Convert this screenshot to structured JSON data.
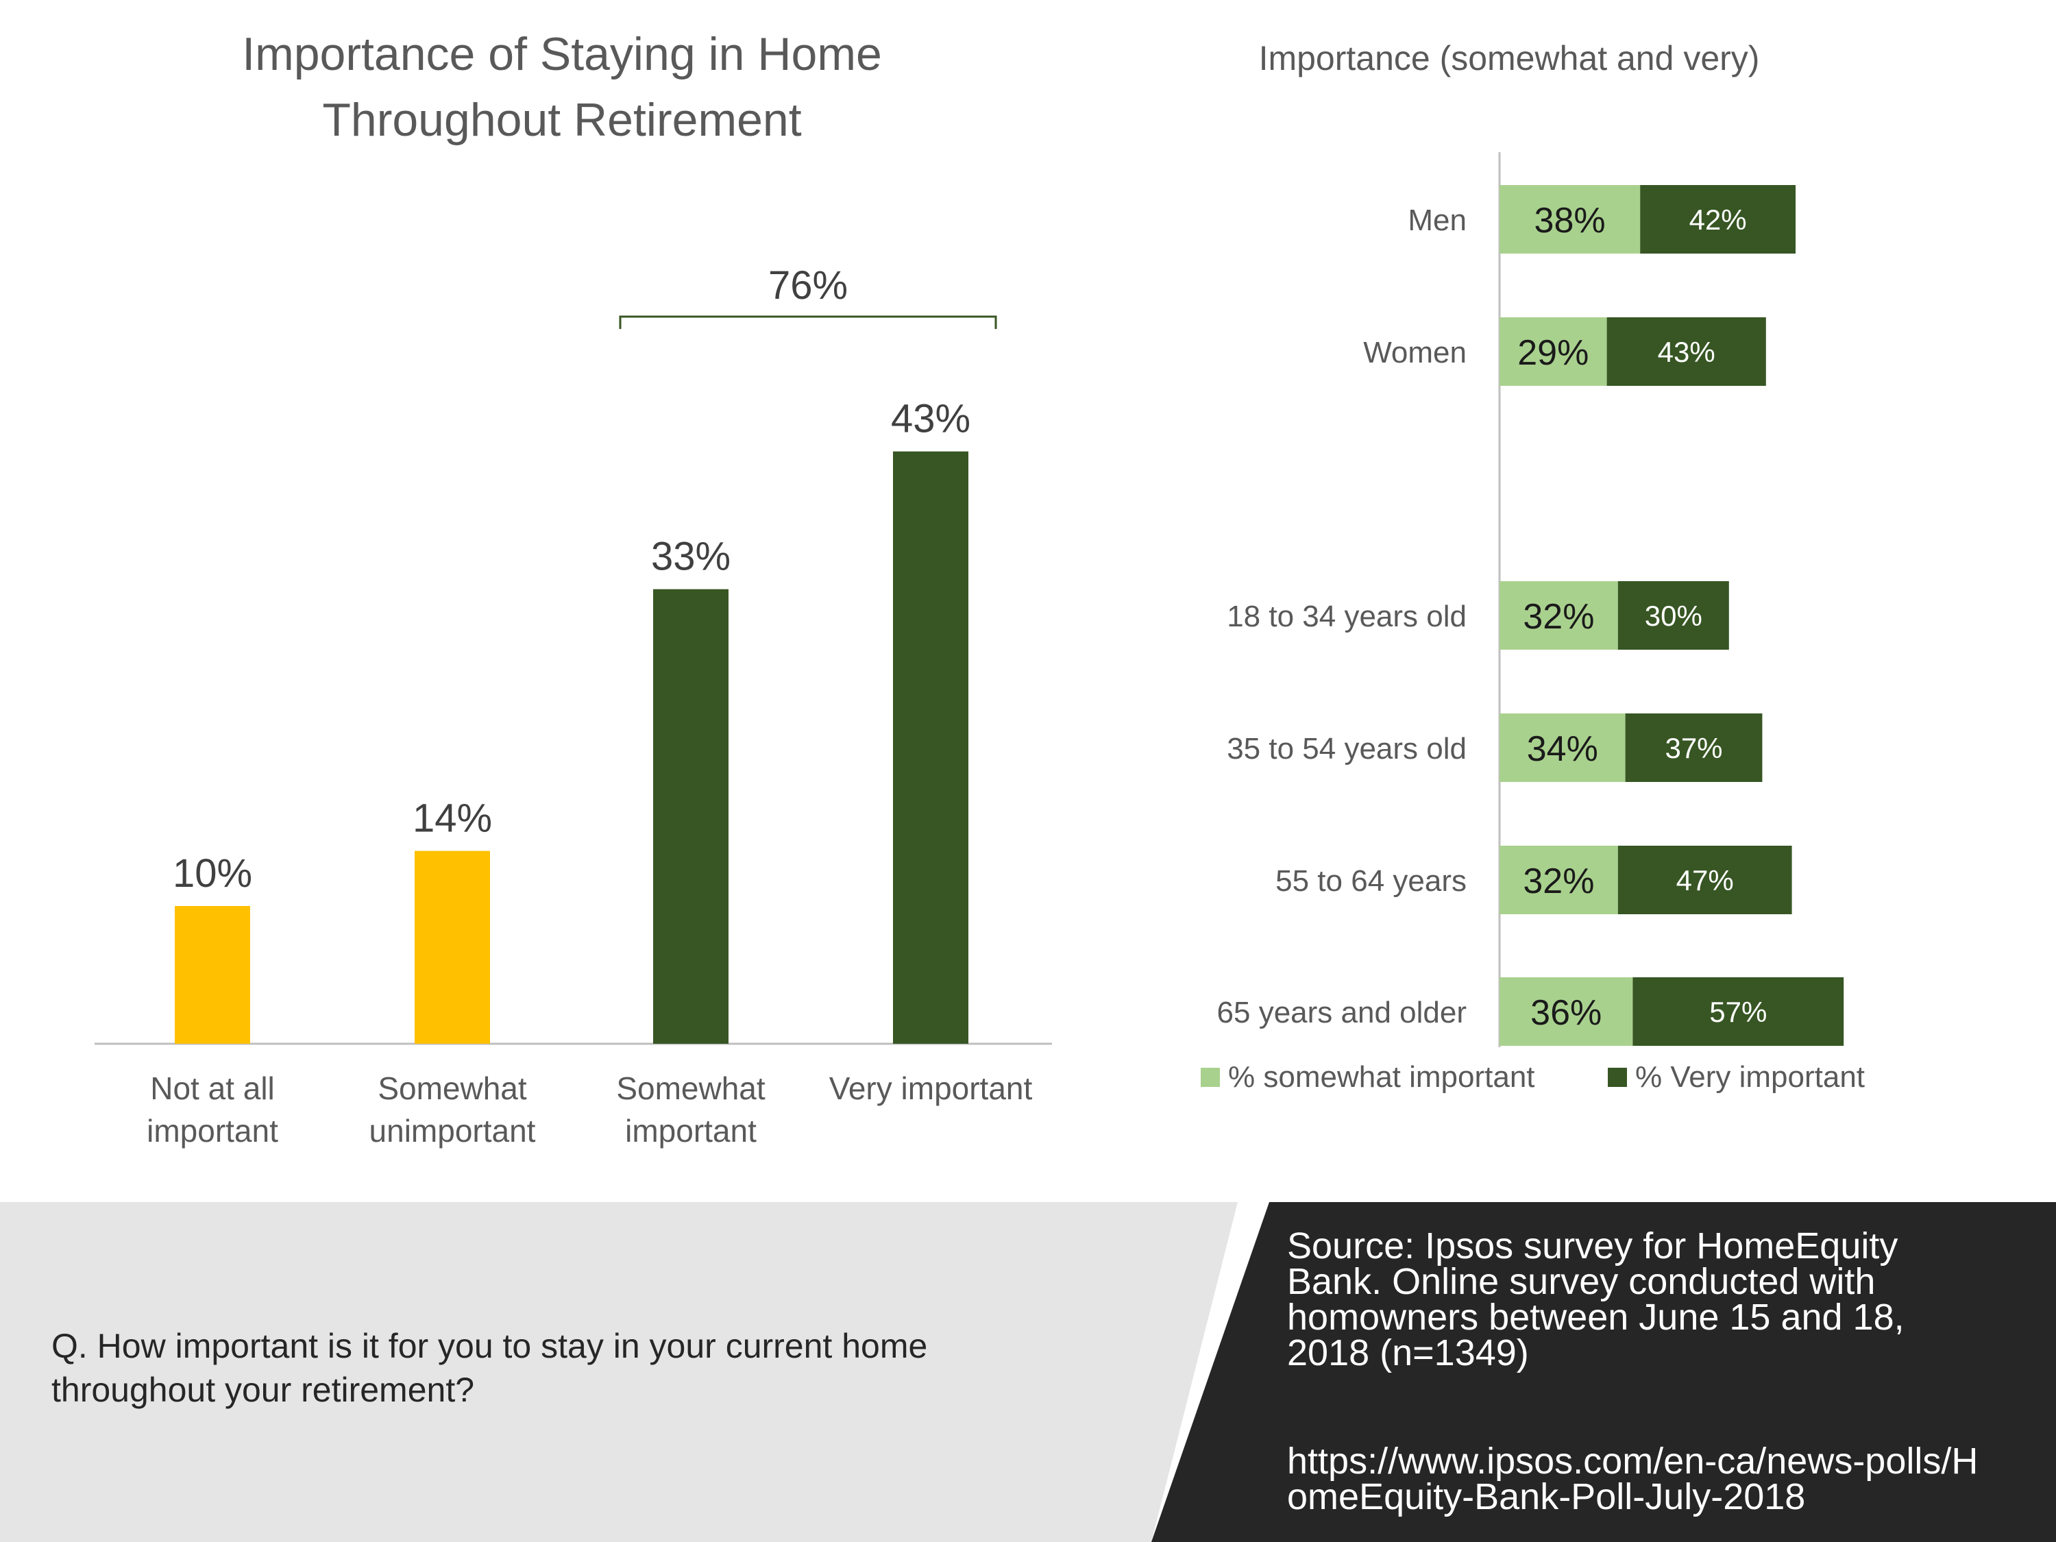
{
  "colors": {
    "not_important": "#FFC000",
    "important_dark": "#375623",
    "somewhat_light": "#A9D18E",
    "axis": "#BFBFBF",
    "footer_light": "#E5E5E5",
    "footer_dark": "#262626"
  },
  "chart_data": [
    {
      "type": "bar",
      "title": "Importance of Staying in Home Throughout Retirement",
      "categories": [
        "Not at all important",
        "Somewhat unimportant",
        "Somewhat important",
        "Very important"
      ],
      "values": [
        10,
        14,
        33,
        43
      ],
      "value_labels": [
        "10%",
        "14%",
        "33%",
        "43%"
      ],
      "bar_colors": [
        "#FFC000",
        "#FFC000",
        "#375623",
        "#375623"
      ],
      "bracket": {
        "label": "76%",
        "spans": [
          "Somewhat important",
          "Very important"
        ]
      },
      "ylim": [
        0,
        50
      ],
      "grid": false,
      "xlabel": "",
      "ylabel": ""
    },
    {
      "type": "bar",
      "orientation": "horizontal",
      "stacked": true,
      "title": "Importance (somewhat and very)",
      "categories": [
        "Men",
        "Women",
        "",
        "18 to 34 years old",
        "35 to 54 years old",
        "55 to 64 years",
        "65 years and older"
      ],
      "series": [
        {
          "name": "% somewhat important",
          "color": "#A9D18E",
          "values": [
            38,
            29,
            null,
            32,
            34,
            32,
            36
          ]
        },
        {
          "name": "% Very important",
          "color": "#375623",
          "values": [
            42,
            43,
            null,
            30,
            37,
            47,
            57
          ]
        }
      ],
      "legend": "bottom",
      "grid": false,
      "xlim": [
        0,
        100
      ]
    }
  ],
  "footer": {
    "question": "Q. How important is it for you to stay in your current home throughout your retirement?",
    "source": "Source:  Ipsos survey for HomeEquity Bank. Online survey conducted with homowners between June 15 and 18, 2018 (n=1349)",
    "url": "https://www.ipsos.com/en-ca/news-polls/HomeEquity-Bank-Poll-July-2018"
  }
}
